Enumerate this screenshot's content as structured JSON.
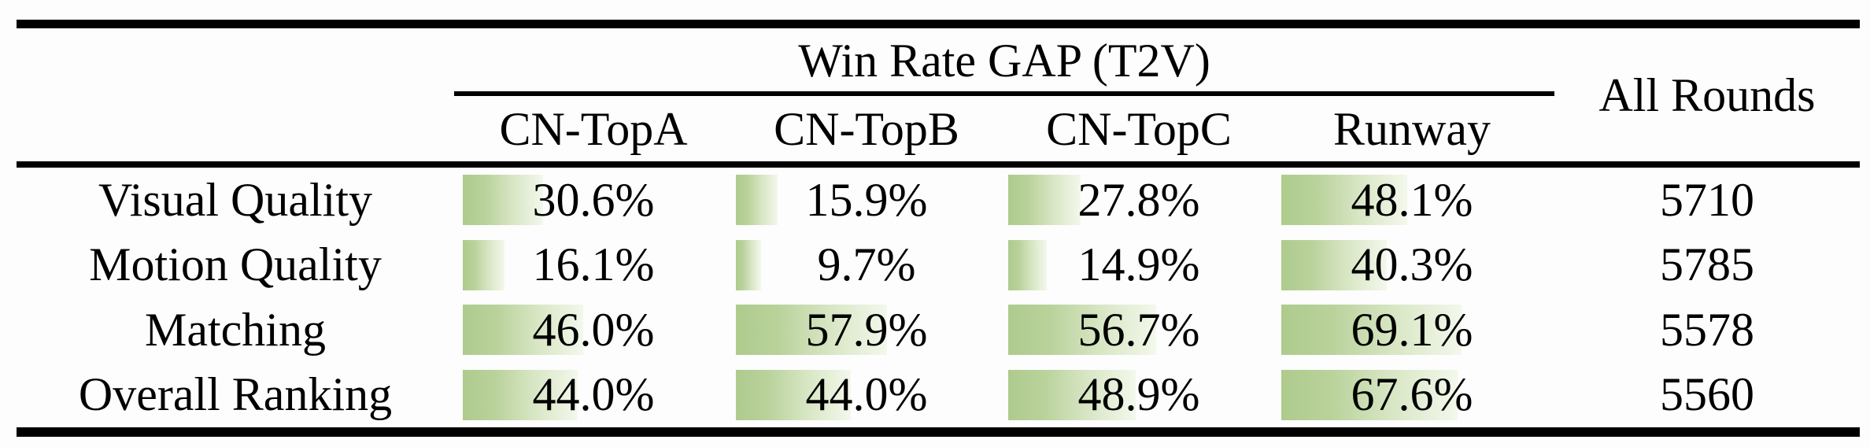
{
  "table": {
    "group_title": "Win Rate GAP (T2V)",
    "all_rounds_header": "All Rounds",
    "columns": [
      "CN-TopA",
      "CN-TopB",
      "CN-TopC",
      "Runway"
    ],
    "rows": [
      {
        "label": "Visual Quality",
        "values": [
          "30.6%",
          "15.9%",
          "27.8%",
          "48.1%"
        ],
        "all_rounds": "5710"
      },
      {
        "label": "Motion Quality",
        "values": [
          "16.1%",
          "9.7%",
          "14.9%",
          "40.3%"
        ],
        "all_rounds": "5785"
      },
      {
        "label": "Matching",
        "values": [
          "46.0%",
          "57.9%",
          "56.7%",
          "69.1%"
        ],
        "all_rounds": "5578"
      },
      {
        "label": "Overall Ranking",
        "values": [
          "44.0%",
          "44.0%",
          "48.9%",
          "67.6%"
        ],
        "all_rounds": "5560"
      }
    ]
  },
  "chart_data": {
    "type": "table",
    "title": "Win Rate GAP (T2V)",
    "row_header": [
      "Visual Quality",
      "Motion Quality",
      "Matching",
      "Overall Ranking"
    ],
    "columns": [
      "CN-TopA",
      "CN-TopB",
      "CN-TopC",
      "Runway",
      "All Rounds"
    ],
    "win_rate_gap_percent": [
      [
        30.6,
        15.9,
        27.8,
        48.1
      ],
      [
        16.1,
        9.7,
        14.9,
        40.3
      ],
      [
        46.0,
        57.9,
        56.7,
        69.1
      ],
      [
        44.0,
        44.0,
        48.9,
        67.6
      ]
    ],
    "all_rounds": [
      5710,
      5785,
      5578,
      5560
    ],
    "bar_axis_range_percent": [
      0,
      100
    ],
    "bar_color_left": "#b2cd92",
    "bar_color_right": "#f3f8ec"
  }
}
